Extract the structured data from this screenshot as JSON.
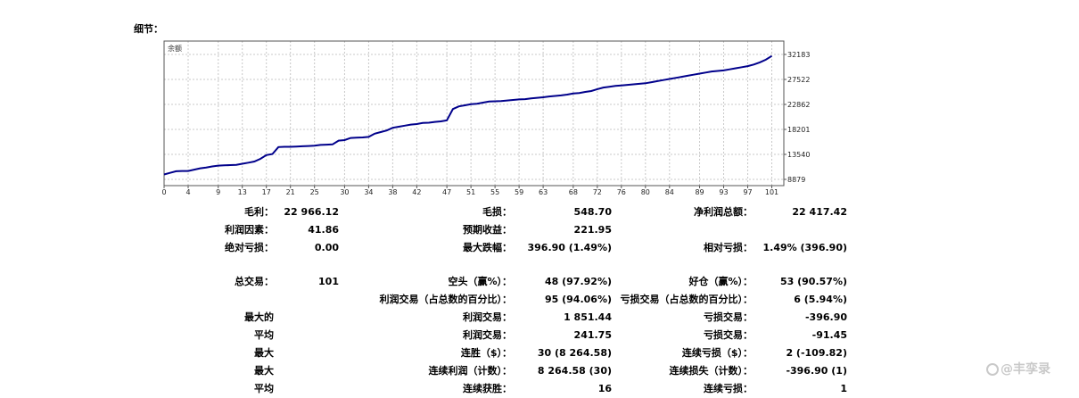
{
  "header": {
    "title": "细节："
  },
  "chart_data": {
    "type": "line",
    "title": "余额",
    "x_ticks": [
      "0",
      "4",
      "9",
      "13",
      "17",
      "21",
      "25",
      "30",
      "34",
      "38",
      "42",
      "47",
      "51",
      "55",
      "59",
      "63",
      "68",
      "72",
      "76",
      "80",
      "84",
      "89",
      "93",
      "97",
      "101"
    ],
    "y_ticks": [
      "32183",
      "27522",
      "22862",
      "18201",
      "13540",
      "8879"
    ],
    "ylim": [
      8879,
      32183
    ],
    "xlim": [
      0,
      103
    ],
    "grid": true,
    "series": [
      {
        "color": "#00008b",
        "x": [
          0,
          1,
          2,
          3,
          4,
          5,
          6,
          7,
          8,
          9,
          10,
          11,
          12,
          13,
          14,
          15,
          16,
          17,
          18,
          19,
          20,
          21,
          22,
          23,
          24,
          25,
          26,
          27,
          28,
          29,
          30,
          31,
          32,
          33,
          34,
          35,
          36,
          37,
          38,
          39,
          40,
          41,
          42,
          43,
          44,
          45,
          46,
          47,
          48,
          49,
          50,
          51,
          52,
          53,
          54,
          55,
          56,
          57,
          58,
          59,
          60,
          61,
          62,
          63,
          64,
          65,
          66,
          67,
          68,
          69,
          70,
          71,
          72,
          73,
          74,
          75,
          76,
          77,
          78,
          79,
          80,
          81,
          82,
          83,
          84,
          85,
          86,
          87,
          88,
          89,
          90,
          91,
          92,
          93,
          94,
          95,
          96,
          97,
          98,
          99,
          100,
          101
        ],
        "y": [
          9800,
          10100,
          10400,
          10450,
          10450,
          10700,
          10950,
          11100,
          11300,
          11450,
          11500,
          11550,
          11600,
          11800,
          12000,
          12200,
          12700,
          13400,
          13600,
          14900,
          14950,
          14950,
          15000,
          15050,
          15100,
          15150,
          15300,
          15350,
          15400,
          16100,
          16200,
          16600,
          16650,
          16700,
          16800,
          17400,
          17700,
          18000,
          18500,
          18700,
          18900,
          19100,
          19200,
          19400,
          19450,
          19600,
          19700,
          19900,
          22000,
          22500,
          22700,
          22900,
          23000,
          23200,
          23400,
          23450,
          23500,
          23600,
          23700,
          23800,
          23850,
          24000,
          24100,
          24200,
          24350,
          24450,
          24550,
          24700,
          24900,
          25000,
          25200,
          25350,
          25700,
          26000,
          26150,
          26300,
          26400,
          26500,
          26600,
          26700,
          26800,
          27000,
          27200,
          27400,
          27600,
          27800,
          28000,
          28200,
          28400,
          28600,
          28800,
          29000,
          29100,
          29200,
          29400,
          29600,
          29800,
          30000,
          30300,
          30700,
          31200,
          31900
        ]
      }
    ]
  },
  "stats": {
    "gross_profit_label": "毛利：",
    "gross_profit": "22 966.12",
    "gross_loss_label": "毛损：",
    "gross_loss": "548.70",
    "net_profit_label": "净利润总额：",
    "net_profit": "22 417.42",
    "profit_factor_label": "利润因素：",
    "profit_factor": "41.86",
    "expected_payoff_label": "预期收益：",
    "expected_payoff": "221.95",
    "abs_drawdown_label": "绝对亏损：",
    "abs_drawdown": "0.00",
    "max_drawdown_label": "最大跌幅：",
    "max_drawdown": "396.90 (1.49%)",
    "rel_drawdown_label": "相对亏损：",
    "rel_drawdown": "1.49% (396.90)",
    "total_trades_label": "总交易：",
    "total_trades": "101",
    "short_label": "空头（赢%）：",
    "short": "48 (97.92%)",
    "long_label": "好仓（赢%）：",
    "long": "53 (90.57%)",
    "profit_trades_label": "利润交易（占总数的百分比）：",
    "profit_trades": "95 (94.06%)",
    "loss_trades_label": "亏损交易（占总数的百分比）：",
    "loss_trades": "6 (5.94%)",
    "largest_label": "最大的",
    "largest_profit_label": "利润交易：",
    "largest_profit": "1 851.44",
    "largest_loss_label": "亏损交易：",
    "largest_loss": "-396.90",
    "average_label": "平均",
    "average_profit_label": "利润交易：",
    "average_profit": "241.75",
    "average_loss_label": "亏损交易：",
    "average_loss": "-91.45",
    "max1_label": "最大",
    "max_consec_wins_label": "连胜（$）：",
    "max_consec_wins": "30 (8 264.58)",
    "max_consec_losses_label": "连续亏损（$）：",
    "max_consec_losses": "2 (-109.82)",
    "max2_label": "最大",
    "max_consec_profit_label": "连续利润（计数）：",
    "max_consec_profit": "8 264.58 (30)",
    "max_consec_loss_label": "连续损失（计数）：",
    "max_consec_loss": "-396.90 (1)",
    "avg2_label": "平均",
    "avg_consec_wins_label": "连续获胜：",
    "avg_consec_wins": "16",
    "avg_consec_losses_label": "连续亏损：",
    "avg_consec_losses": "1"
  },
  "watermark": {
    "text": "@丰孪录"
  }
}
